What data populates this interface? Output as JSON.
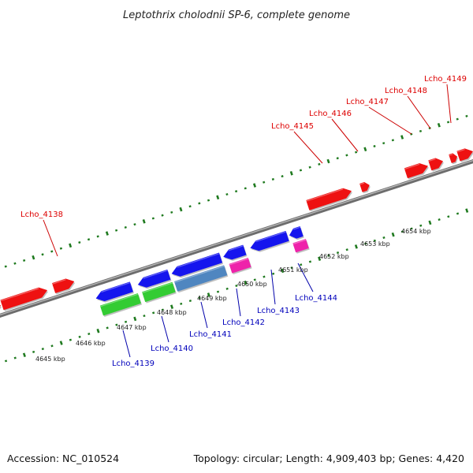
{
  "title": "Leptothrix cholodnii SP-6, complete genome",
  "footer": {
    "accession": "Accession: NC_010524",
    "summary": "Topology: circular; Length: 4,909,403 bp; Genes: 4,420"
  },
  "colors": {
    "forward_label": "#dd0000",
    "reverse_label": "#0000bb",
    "leader_forward": "#cc0000",
    "leader_reverse": "#0000aa",
    "backbone": "#888888",
    "tick": "#1f7a1f"
  },
  "tick_labels": [
    "4645 kbp",
    "4646 kbp",
    "4647 kbp",
    "4648 kbp",
    "4649 kbp",
    "4650 kbp",
    "4651 kbp",
    "4652 kbp",
    "4653 kbp",
    "4654 kbp"
  ],
  "genes_forward": [
    {
      "id": "Lcho_4138",
      "color": "#ee1111"
    },
    {
      "id": "Lcho_4145",
      "color": "#ee1111"
    },
    {
      "id": "Lcho_4146",
      "color": "#ee1111"
    },
    {
      "id": "Lcho_4147",
      "color": "#ee1111"
    },
    {
      "id": "Lcho_4148",
      "color": "#ee1111"
    },
    {
      "id": "Lcho_4149",
      "color": "#ee1111"
    }
  ],
  "genes_reverse": [
    {
      "id": "Lcho_4139",
      "color": "#1515ee"
    },
    {
      "id": "Lcho_4140",
      "color": "#1515ee"
    },
    {
      "id": "Lcho_4141",
      "color": "#1515ee"
    },
    {
      "id": "Lcho_4142",
      "color": "#1515ee"
    },
    {
      "id": "Lcho_4143",
      "color": "#1515ee"
    },
    {
      "id": "Lcho_4144",
      "color": "#1515ee"
    }
  ],
  "features_lower": [
    {
      "name": "rna-green-1",
      "color": "#33cc33"
    },
    {
      "name": "rna-green-2",
      "color": "#33cc33"
    },
    {
      "name": "rna-steelblue",
      "color": "#4f86c0"
    },
    {
      "name": "rna-magenta-1",
      "color": "#ee22aa"
    },
    {
      "name": "rna-magenta-2",
      "color": "#ee22aa"
    }
  ]
}
